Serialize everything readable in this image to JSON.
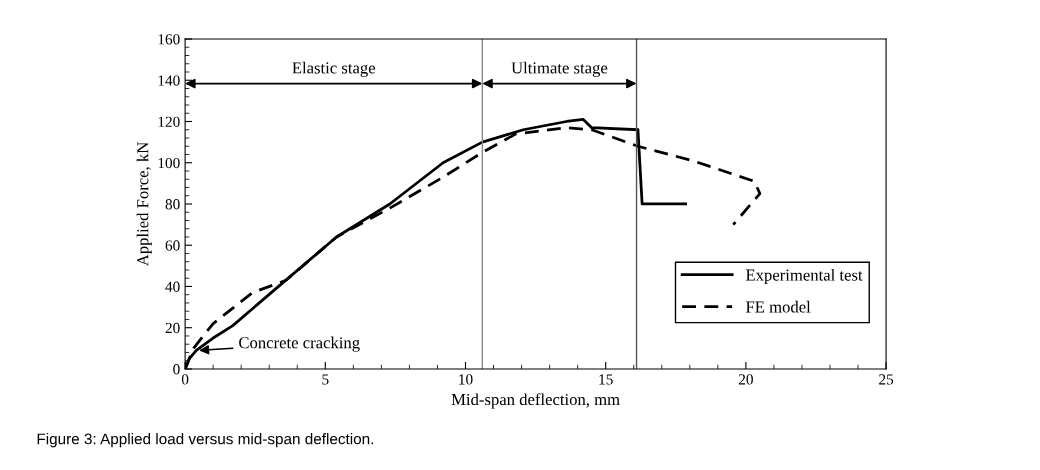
{
  "chart_data": {
    "type": "line",
    "xlabel": "Mid-span deflection, mm",
    "ylabel": "Applied Force, kN",
    "xlim": [
      0,
      25
    ],
    "xticks": [
      0,
      5,
      10,
      15,
      20,
      25
    ],
    "ylim": [
      0,
      160
    ],
    "yticks": [
      0,
      20,
      40,
      60,
      80,
      100,
      120,
      140,
      160
    ],
    "grid": false,
    "legend": "bottom right",
    "series": [
      {
        "name": "Experimental test",
        "color": "#000000",
        "line_style": "solid",
        "x": [
          0,
          0.15,
          0.4,
          1.0,
          1.7,
          3.5,
          5.4,
          7.3,
          9.2,
          10.6,
          12.06,
          13.6,
          14.2,
          14.5,
          16.15,
          16.3,
          17.85
        ],
        "values": [
          0,
          5,
          9,
          15,
          21,
          42,
          64,
          80,
          100,
          110,
          116,
          120,
          121,
          117,
          116,
          80,
          80
        ]
      },
      {
        "name": "FE model",
        "color": "#000000",
        "line_style": "dashed",
        "x": [
          0,
          0.3,
          1.0,
          2.4,
          3.6,
          5.4,
          7.3,
          9.2,
          10.6,
          11.8,
          13.6,
          14.5,
          16.15,
          18.1,
          20.3,
          20.5,
          19.55
        ],
        "values": [
          0,
          10,
          22,
          37,
          43,
          64,
          78,
          93,
          105,
          114,
          117,
          116,
          108,
          101,
          91,
          85,
          70
        ]
      }
    ],
    "ref_lines": [
      {
        "axis": "x",
        "value": 10.6,
        "color": "#888888"
      },
      {
        "axis": "x",
        "value": 16.1,
        "color": "#555555"
      }
    ],
    "annotations": [
      "Elastic stage",
      "Ultimate stage",
      {
        "text": "Concrete cracking",
        "x": 0.5,
        "y": 9
      },
      "Figure 3: Applied load versus mid-span deflection."
    ]
  }
}
